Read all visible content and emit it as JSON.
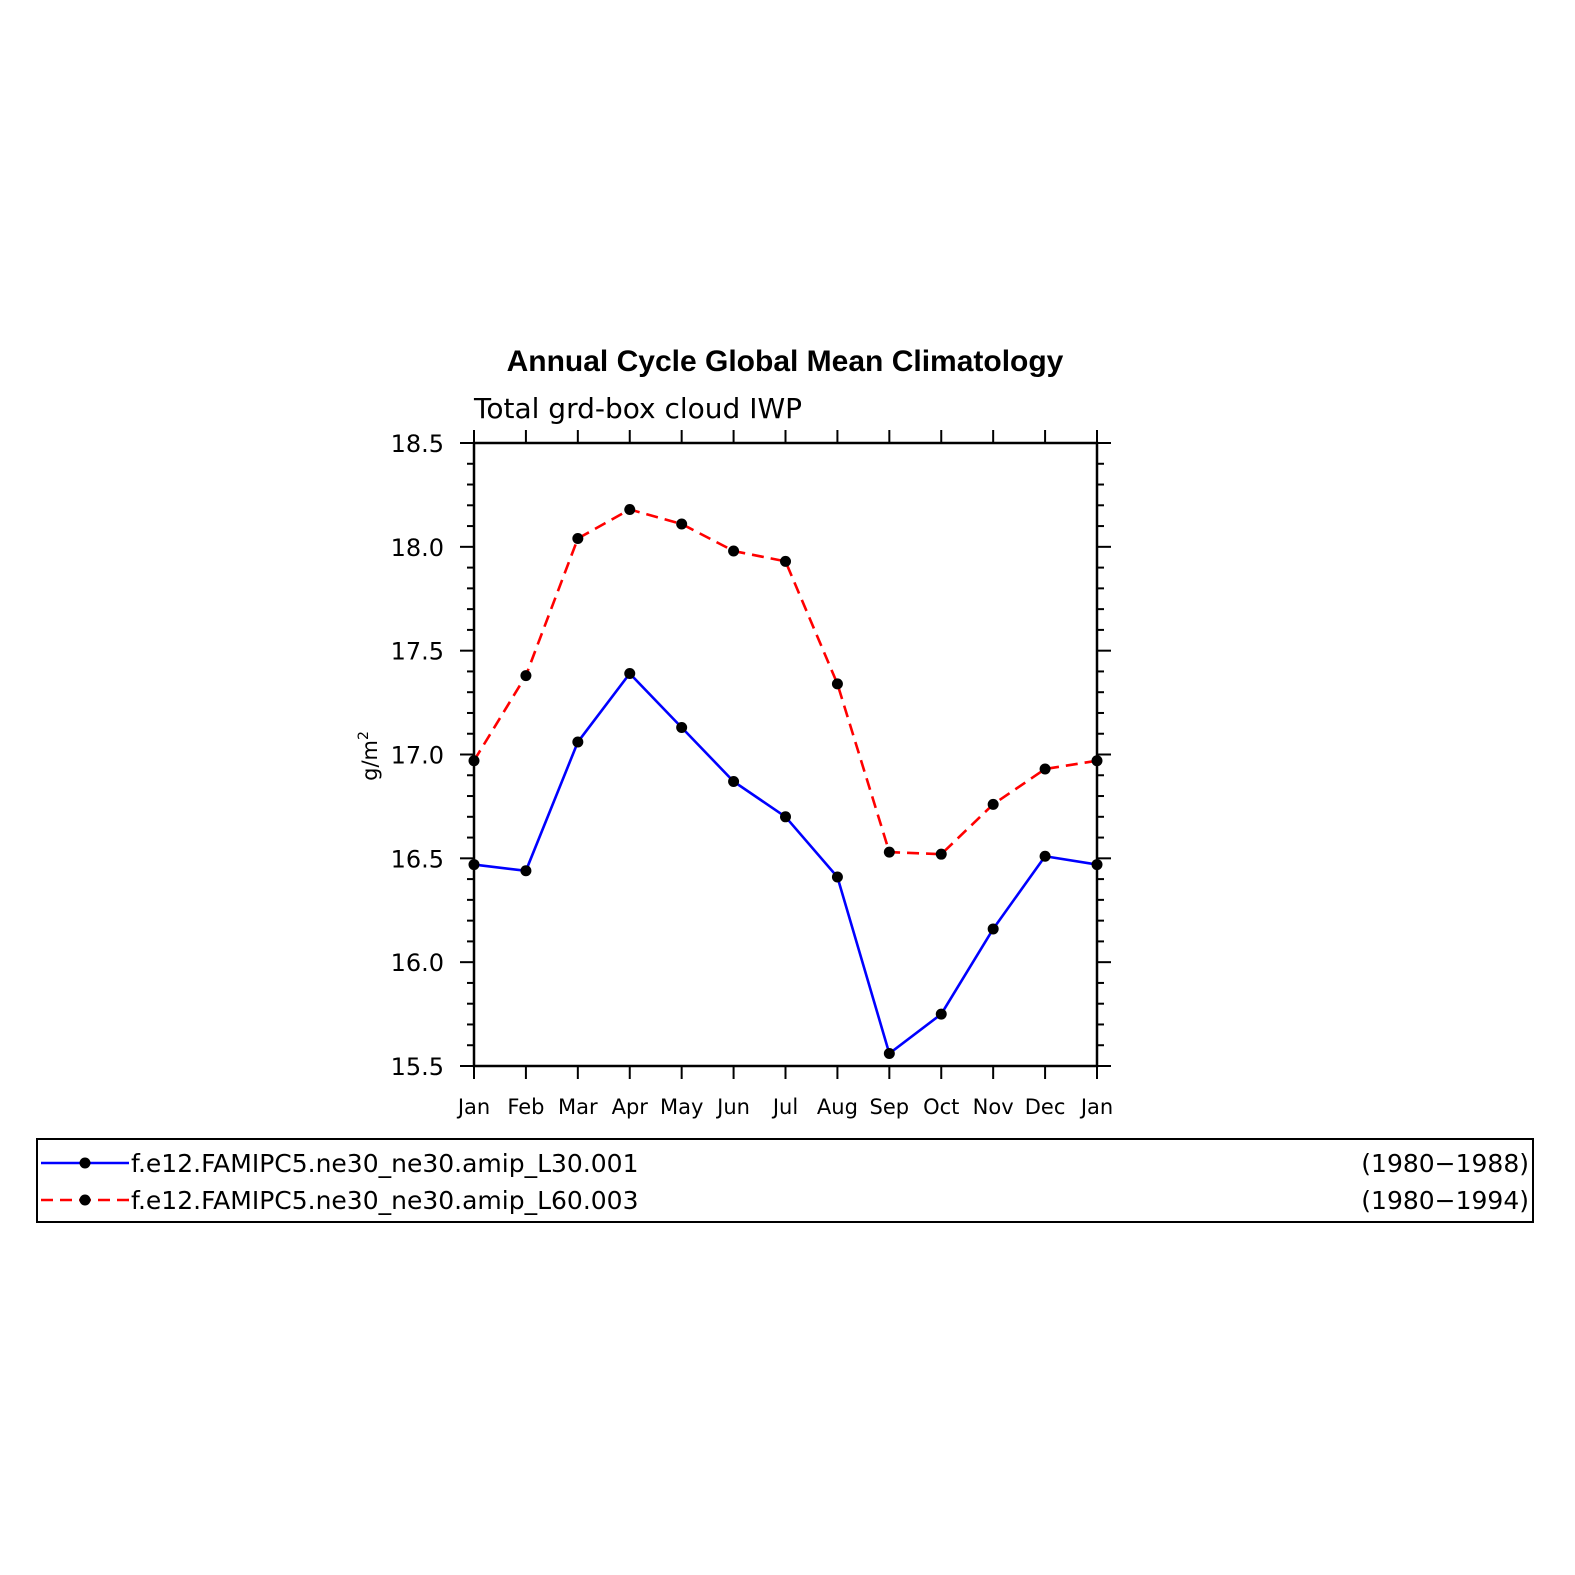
{
  "chart_data": {
    "type": "line",
    "title": "Annual Cycle Global Mean Climatology",
    "subtitle": "Total grd-box cloud IWP",
    "ylabel": "g/m",
    "ylabel_superscript": "2",
    "ylim": [
      15.5,
      18.5
    ],
    "yticks": [
      "15.5",
      "16.0",
      "16.5",
      "17.0",
      "17.5",
      "18.0",
      "18.5"
    ],
    "ytick_values": [
      15.5,
      16.0,
      16.5,
      17.0,
      17.5,
      18.0,
      18.5
    ],
    "categories": [
      "Jan",
      "Feb",
      "Mar",
      "Apr",
      "May",
      "Jun",
      "Jul",
      "Aug",
      "Sep",
      "Oct",
      "Nov",
      "Dec",
      "Jan"
    ],
    "series": [
      {
        "name": "f.e12.FAMIPC5.ne30_ne30.amip_L30.001",
        "years": "(1980−1988)",
        "color": "#0000ff",
        "dash": "solid",
        "values": [
          16.47,
          16.44,
          17.06,
          17.39,
          17.13,
          16.87,
          16.7,
          16.41,
          15.56,
          15.75,
          16.16,
          16.51,
          16.47
        ]
      },
      {
        "name": "f.e12.FAMIPC5.ne30_ne30.amip_L60.003",
        "years": "(1980−1994)",
        "color": "#ff0000",
        "dash": "dashed",
        "values": [
          16.97,
          17.38,
          18.04,
          18.18,
          18.11,
          17.98,
          17.93,
          17.34,
          16.53,
          16.52,
          16.76,
          16.93,
          16.97
        ]
      }
    ],
    "grid": false,
    "legend": "bottom"
  }
}
